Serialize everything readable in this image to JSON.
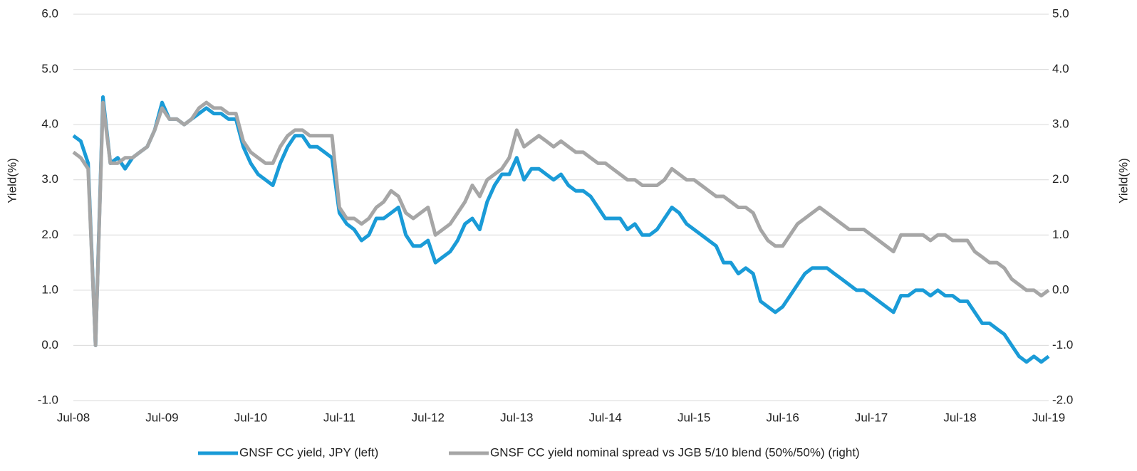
{
  "chart_data": {
    "type": "line",
    "y_label": "Yield(%)",
    "y2_label": "Yield(%)",
    "categories": [
      "Jul-08",
      null,
      null,
      null,
      null,
      null,
      null,
      null,
      null,
      null,
      null,
      null,
      "Jul-09",
      null,
      null,
      null,
      null,
      null,
      null,
      null,
      null,
      null,
      null,
      null,
      "Jul-10",
      null,
      null,
      null,
      null,
      null,
      null,
      null,
      null,
      null,
      null,
      null,
      "Jul-11",
      null,
      null,
      null,
      null,
      null,
      null,
      null,
      null,
      null,
      null,
      null,
      "Jul-12",
      null,
      null,
      null,
      null,
      null,
      null,
      null,
      null,
      null,
      null,
      null,
      "Jul-13",
      null,
      null,
      null,
      null,
      null,
      null,
      null,
      null,
      null,
      null,
      null,
      "Jul-14",
      null,
      null,
      null,
      null,
      null,
      null,
      null,
      null,
      null,
      null,
      null,
      "Jul-15",
      null,
      null,
      null,
      null,
      null,
      null,
      null,
      null,
      null,
      null,
      null,
      "Jul-16",
      null,
      null,
      null,
      null,
      null,
      null,
      null,
      null,
      null,
      null,
      null,
      "Jul-17",
      null,
      null,
      null,
      null,
      null,
      null,
      null,
      null,
      null,
      null,
      null,
      "Jul-18",
      null,
      null,
      null,
      null,
      null,
      null,
      null,
      null,
      null,
      null,
      null,
      "Jul-19"
    ],
    "series": [
      {
        "name": "GNSF CC yield, JPY (left)",
        "color": "#1a9bd7",
        "axis": "y",
        "values": [
          3.8,
          3.7,
          3.3,
          0.0,
          4.5,
          3.3,
          3.4,
          3.2,
          3.4,
          3.5,
          3.6,
          3.9,
          4.4,
          4.1,
          4.1,
          4.0,
          4.1,
          4.2,
          4.3,
          4.2,
          4.2,
          4.1,
          4.1,
          3.6,
          3.3,
          3.1,
          3.0,
          2.9,
          3.3,
          3.6,
          3.8,
          3.8,
          3.6,
          3.6,
          3.5,
          3.4,
          2.4,
          2.2,
          2.1,
          1.9,
          2.0,
          2.3,
          2.3,
          2.4,
          2.5,
          2.0,
          1.8,
          1.8,
          1.9,
          1.5,
          1.6,
          1.7,
          1.9,
          2.2,
          2.3,
          2.1,
          2.6,
          2.9,
          3.1,
          3.1,
          3.4,
          3.0,
          3.2,
          3.2,
          3.1,
          3.0,
          3.1,
          2.9,
          2.8,
          2.8,
          2.7,
          2.5,
          2.3,
          2.3,
          2.3,
          2.1,
          2.2,
          2.0,
          2.0,
          2.1,
          2.3,
          2.5,
          2.4,
          2.2,
          2.1,
          2.0,
          1.9,
          1.8,
          1.5,
          1.5,
          1.3,
          1.4,
          1.3,
          0.8,
          0.7,
          0.6,
          0.7,
          0.9,
          1.1,
          1.3,
          1.4,
          1.4,
          1.4,
          1.3,
          1.2,
          1.1,
          1.0,
          1.0,
          0.9,
          0.8,
          0.7,
          0.6,
          0.9,
          0.9,
          1.0,
          1.0,
          0.9,
          1.0,
          0.9,
          0.9,
          0.8,
          0.8,
          0.6,
          0.4,
          0.4,
          0.3,
          0.2,
          0.0,
          -0.2,
          -0.3,
          -0.2,
          -0.3,
          -0.2
        ]
      },
      {
        "name": "GNSF CC yield nominal spread vs JGB 5/10 blend (50%/50%) (right)",
        "color": "#a6a6a6",
        "axis": "y2",
        "values": [
          2.5,
          2.4,
          2.2,
          -1.0,
          3.4,
          2.3,
          2.3,
          2.4,
          2.4,
          2.5,
          2.6,
          2.9,
          3.3,
          3.1,
          3.1,
          3.0,
          3.1,
          3.3,
          3.4,
          3.3,
          3.3,
          3.2,
          3.2,
          2.7,
          2.5,
          2.4,
          2.3,
          2.3,
          2.6,
          2.8,
          2.9,
          2.9,
          2.8,
          2.8,
          2.8,
          2.8,
          1.5,
          1.3,
          1.3,
          1.2,
          1.3,
          1.5,
          1.6,
          1.8,
          1.7,
          1.4,
          1.3,
          1.4,
          1.5,
          1.0,
          1.1,
          1.2,
          1.4,
          1.6,
          1.9,
          1.7,
          2.0,
          2.1,
          2.2,
          2.4,
          2.9,
          2.6,
          2.7,
          2.8,
          2.7,
          2.6,
          2.7,
          2.6,
          2.5,
          2.5,
          2.4,
          2.3,
          2.3,
          2.2,
          2.1,
          2.0,
          2.0,
          1.9,
          1.9,
          1.9,
          2.0,
          2.2,
          2.1,
          2.0,
          2.0,
          1.9,
          1.8,
          1.7,
          1.7,
          1.6,
          1.5,
          1.5,
          1.4,
          1.1,
          0.9,
          0.8,
          0.8,
          1.0,
          1.2,
          1.3,
          1.4,
          1.5,
          1.4,
          1.3,
          1.2,
          1.1,
          1.1,
          1.1,
          1.0,
          0.9,
          0.8,
          0.7,
          1.0,
          1.0,
          1.0,
          1.0,
          0.9,
          1.0,
          1.0,
          0.9,
          0.9,
          0.9,
          0.7,
          0.6,
          0.5,
          0.5,
          0.4,
          0.2,
          0.1,
          0.0,
          0.0,
          -0.1,
          0.0
        ]
      }
    ],
    "ylim": [
      -1,
      6
    ],
    "yticks": [
      {
        "value": -1,
        "label": "-1.0"
      },
      {
        "value": 0,
        "label": "0.0"
      },
      {
        "value": 1,
        "label": "1.0"
      },
      {
        "value": 2,
        "label": "2.0"
      },
      {
        "value": 3,
        "label": "3.0"
      },
      {
        "value": 4,
        "label": "4.0"
      },
      {
        "value": 5,
        "label": "5.0"
      },
      {
        "value": 6,
        "label": "6.0"
      }
    ],
    "y2lim": [
      -2,
      5
    ],
    "y2ticks": [
      {
        "value": -2,
        "label": "-2.0"
      },
      {
        "value": -1,
        "label": "-1.0"
      },
      {
        "value": 0,
        "label": "0.0"
      },
      {
        "value": 1,
        "label": "1.0"
      },
      {
        "value": 2,
        "label": "2.0"
      },
      {
        "value": 3,
        "label": "3.0"
      },
      {
        "value": 4,
        "label": "4.0"
      },
      {
        "value": 5,
        "label": "5.0"
      }
    ],
    "grid": true,
    "legend": "bottom"
  }
}
